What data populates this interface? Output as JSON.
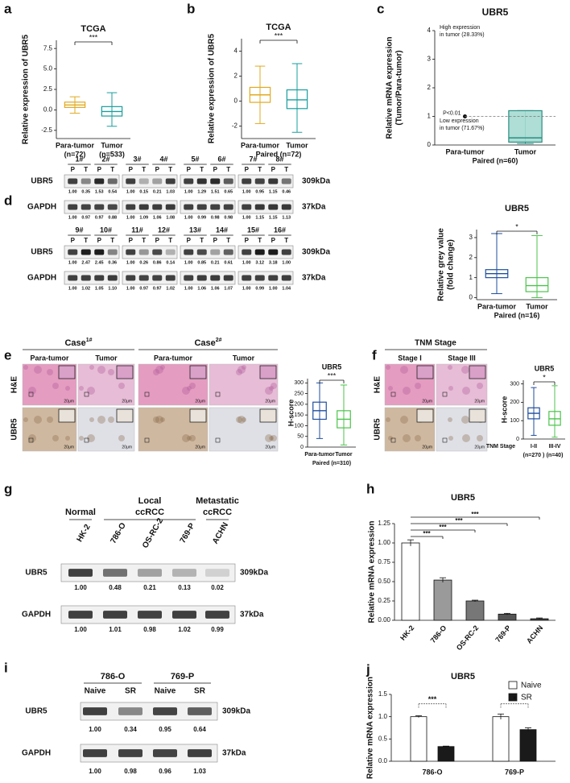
{
  "panels": {
    "a": {
      "label": "a",
      "title": "TCGA",
      "ylabel": [
        "Relative expression of UBR5"
      ],
      "categories": [
        "Para-tumor",
        "Tumor"
      ],
      "n_labels": [
        "(n=72)",
        "(n=533)"
      ],
      "significance": "***",
      "ylim": [
        -3.5,
        8.5
      ],
      "yticks": [
        {
          "value": -2.5,
          "label": "-2.5"
        },
        {
          "value": 0,
          "label": "0.0"
        },
        {
          "value": 2.5,
          "label": "2.5"
        },
        {
          "value": 5,
          "label": "5.0"
        },
        {
          "value": 7.5,
          "label": "7.5"
        }
      ],
      "boxes": [
        {
          "color": "#e0aa20",
          "whisker_low": -0.4,
          "q1": 0.3,
          "median": 0.6,
          "q3": 0.95,
          "whisker_high": 1.6
        },
        {
          "color": "#1a9e9e",
          "whisker_low": -2.0,
          "q1": -0.75,
          "median": -0.2,
          "q3": 0.4,
          "whisker_high": 2.1
        }
      ]
    },
    "b": {
      "label": "b",
      "title": "TCGA",
      "ylabel": [
        "Relative expression of UBR5"
      ],
      "categories": [
        "Para-tumor",
        "Tumor"
      ],
      "xlabel": "Paired (n=72)",
      "significance": "***",
      "ylim": [
        -3,
        5
      ],
      "yticks": [
        -2,
        0,
        2,
        4
      ],
      "boxes": [
        {
          "color": "#e0aa20",
          "whisker_low": -1.8,
          "q1": -0.1,
          "median": 0.5,
          "q3": 1.1,
          "whisker_high": 2.8
        },
        {
          "color": "#1a9e9e",
          "whisker_low": -2.5,
          "q1": -0.6,
          "median": 0.1,
          "q3": 0.9,
          "whisker_high": 3.0
        }
      ]
    },
    "c": {
      "label": "c",
      "title": "UBR5",
      "ylabel": [
        "Relative mRNA expression",
        "(Tumor/Para-tumor)"
      ],
      "categories": [
        "Para-tumor",
        "Tumor"
      ],
      "xlabel": "Paired (n=60)",
      "high_note": [
        "High expression",
        "in tumor (28.33%)"
      ],
      "low_note": [
        "Low expression",
        "in tumor (71.67%)"
      ],
      "p_note": "P<0.01",
      "para_tumor_value": 1,
      "ylim": [
        0,
        4
      ],
      "yticks": [
        0,
        1,
        2,
        3,
        4
      ],
      "boxes": [
        null,
        {
          "color": "#2a8d80",
          "fill": "#a5dad2",
          "whisker_low": 0.05,
          "q1": 0.1,
          "median": 0.25,
          "q3": 1.2,
          "whisker_high": 1.2
        }
      ]
    },
    "d": {
      "label": "d",
      "blots": [
        {
          "samples": [
            "1#",
            "2#",
            "3#",
            "4#",
            "5#",
            "6#",
            "7#",
            "8#"
          ],
          "lanes": [
            "P",
            "T",
            "P",
            "T",
            "P",
            "T",
            "P",
            "T",
            "P",
            "T",
            "P",
            "T",
            "P",
            "T",
            "P",
            "T"
          ],
          "rows": [
            {
              "name": "UBR5",
              "size": "309kDa",
              "quant": [
                "1.00",
                "0.35",
                "1.53",
                "0.54",
                "1.00",
                "0.15",
                "0.21",
                "1.03",
                "1.00",
                "1.29",
                "1.51",
                "0.65",
                "1.00",
                "0.95",
                "1.15",
                "0.46"
              ]
            },
            {
              "name": "GAPDH",
              "size": "37kDa",
              "quant": [
                "1.00",
                "0.97",
                "0.97",
                "0.88",
                "1.00",
                "1.09",
                "1.06",
                "1.08",
                "1.00",
                "0.99",
                "0.98",
                "0.98",
                "1.00",
                "1.15",
                "1.15",
                "1.13"
              ]
            }
          ]
        },
        {
          "samples": [
            "9#",
            "10#",
            "11#",
            "12#",
            "13#",
            "14#",
            "15#",
            "16#"
          ],
          "lanes": [
            "P",
            "T",
            "P",
            "T",
            "P",
            "T",
            "P",
            "T",
            "P",
            "T",
            "P",
            "T",
            "P",
            "T",
            "P",
            "T"
          ],
          "rows": [
            {
              "name": "UBR5",
              "size": "309kDa",
              "quant": [
                "1.00",
                "2.47",
                "2.45",
                "0.36",
                "1.00",
                "0.26",
                "0.86",
                "0.14",
                "1.00",
                "0.85",
                "0.21",
                "0.61",
                "1.00",
                "3.12",
                "3.18",
                "1.00"
              ]
            },
            {
              "name": "GAPDH",
              "size": "37kDa",
              "quant": [
                "1.00",
                "1.02",
                "1.05",
                "1.10",
                "1.00",
                "0.97",
                "0.97",
                "1.02",
                "1.00",
                "1.06",
                "1.06",
                "1.07",
                "1.00",
                "0.99",
                "1.00",
                "1.04"
              ]
            }
          ]
        }
      ],
      "chart": {
        "title": "UBR5",
        "ylabel": [
          "Relative grey value",
          "(fold change)"
        ],
        "categories": [
          "Para-tumor",
          "Tumor"
        ],
        "xlabel": "Paired (n=16)",
        "significance": "*",
        "ylim": [
          -0.1,
          3.4
        ],
        "yticks": [
          0,
          1,
          2,
          3
        ],
        "boxes": [
          {
            "color": "#1f4e9e",
            "whisker_low": 0.2,
            "q1": 1.0,
            "median": 1.2,
            "q3": 1.4,
            "whisker_high": 3.2
          },
          {
            "color": "#4cc34c",
            "whisker_low": 0.0,
            "q1": 0.3,
            "median": 0.6,
            "q3": 1.0,
            "whisker_high": 3.1
          }
        ]
      }
    },
    "e": {
      "label": "e",
      "cases": [
        {
          "text": "Case",
          "sup": "1#"
        },
        {
          "text": "Case",
          "sup": "2#"
        }
      ],
      "columns": [
        "Para-tumor",
        "Tumor",
        "Para-tumor",
        "Tumor"
      ],
      "rows": [
        "H&E",
        "UBR5"
      ],
      "scale": "20μm",
      "chart": {
        "title": "UBR5",
        "ylabel": [
          "H-score"
        ],
        "categories": [
          "Para-tumor",
          "Tumor"
        ],
        "xlabel": "Paired (n=310)",
        "significance": "***",
        "ylim": [
          0,
          320
        ],
        "yticks": [
          0,
          50,
          100,
          150,
          200,
          250,
          300
        ],
        "boxes": [
          {
            "color": "#1f4e9e",
            "whisker_low": 40,
            "q1": 130,
            "median": 170,
            "q3": 210,
            "whisker_high": 300
          },
          {
            "color": "#4cc34c",
            "whisker_low": 10,
            "q1": 90,
            "median": 130,
            "q3": 170,
            "whisker_high": 290
          }
        ]
      }
    },
    "f": {
      "label": "f",
      "header": "TNM Stage",
      "columns": [
        "Stage I",
        "Stage III"
      ],
      "rows": [
        "H&E",
        "UBR5"
      ],
      "scale": "20μm",
      "chart": {
        "title": "UBR5",
        "ylabel": [
          "H-score"
        ],
        "x_prefix": "TNM Stage",
        "categories": [
          "I-II",
          "III-IV"
        ],
        "n_labels": [
          "(n=270 )",
          "(n=40)"
        ],
        "significance": "*",
        "ylim": [
          0,
          320
        ],
        "yticks": [
          0,
          100,
          200,
          300
        ],
        "boxes": [
          {
            "color": "#1f4e9e",
            "whisker_low": 20,
            "q1": 110,
            "median": 140,
            "q3": 170,
            "whisker_high": 280
          },
          {
            "color": "#4cc34c",
            "whisker_low": 10,
            "q1": 75,
            "median": 110,
            "q3": 150,
            "whisker_high": 290
          }
        ]
      }
    },
    "g": {
      "label": "g",
      "groups": [
        [
          "Normal"
        ],
        [
          "Local",
          "ccRCC"
        ],
        [
          "Metastatic",
          "ccRCC"
        ]
      ],
      "lanes": [
        "HK-2",
        "786-O",
        "OS-RC-2",
        "769-P",
        "ACHN"
      ],
      "rows": [
        {
          "name": "UBR5",
          "size": "309kDa",
          "quant": [
            "1.00",
            "0.48",
            "0.21",
            "0.13",
            "0.02"
          ]
        },
        {
          "name": "GAPDH",
          "size": "37kDa",
          "quant": [
            "1.00",
            "1.01",
            "0.98",
            "1.02",
            "0.99"
          ]
        }
      ]
    },
    "h": {
      "label": "h",
      "title": "UBR5",
      "ylabel": "Relative mRNA expression",
      "categories": [
        "HK-2",
        "786-O",
        "OS-RC-2",
        "769-P",
        "ACHN"
      ],
      "values": [
        1.0,
        0.52,
        0.25,
        0.08,
        0.02
      ],
      "errors": [
        0.04,
        0.03,
        0.01,
        0.01,
        0.01
      ],
      "colors": [
        "#ffffff",
        "#9a9a9a",
        "#777777",
        "#555555",
        "#444444"
      ],
      "significance": [
        null,
        "***",
        "***",
        "***",
        "***"
      ],
      "ylim": [
        0,
        1.25
      ],
      "yticks": [
        {
          "value": 0,
          "label": "0.00"
        },
        {
          "value": 0.25,
          "label": "0.25"
        },
        {
          "value": 0.5,
          "label": "0.50"
        },
        {
          "value": 0.75,
          "label": "0.75"
        },
        {
          "value": 1,
          "label": "1.00"
        },
        {
          "value": 1.25,
          "label": "1.25"
        }
      ]
    },
    "i": {
      "label": "i",
      "groups": [
        [
          "786-O"
        ],
        [
          "769-P"
        ]
      ],
      "lanes": [
        "Naive",
        "SR",
        "Naive",
        "SR"
      ],
      "rows": [
        {
          "name": "UBR5",
          "size": "309kDa",
          "quant": [
            "1.00",
            "0.34",
            "0.95",
            "0.64"
          ]
        },
        {
          "name": "GAPDH",
          "size": "37kDa",
          "quant": [
            "1.00",
            "0.98",
            "0.96",
            "1.03"
          ]
        }
      ]
    },
    "j": {
      "label": "j",
      "title": "UBR5",
      "ylabel": "Relative mRNA expression",
      "categories": [
        "786-O",
        "769-P"
      ],
      "series": [
        {
          "name": "Naive",
          "color": "#ffffff",
          "values": [
            1.0,
            1.0
          ],
          "errors": [
            0.02,
            0.06
          ]
        },
        {
          "name": "SR",
          "color": "#1a1a1a",
          "values": [
            0.33,
            0.71
          ],
          "errors": [
            0.01,
            0.04
          ]
        }
      ],
      "significance": [
        "***",
        "*"
      ],
      "ylim": [
        0,
        1.5
      ],
      "yticks": [
        {
          "value": 0,
          "label": "0.0"
        },
        {
          "value": 0.5,
          "label": "0.5"
        },
        {
          "value": 1,
          "label": "1.0"
        },
        {
          "value": 1.5,
          "label": "1.5"
        }
      ]
    }
  }
}
